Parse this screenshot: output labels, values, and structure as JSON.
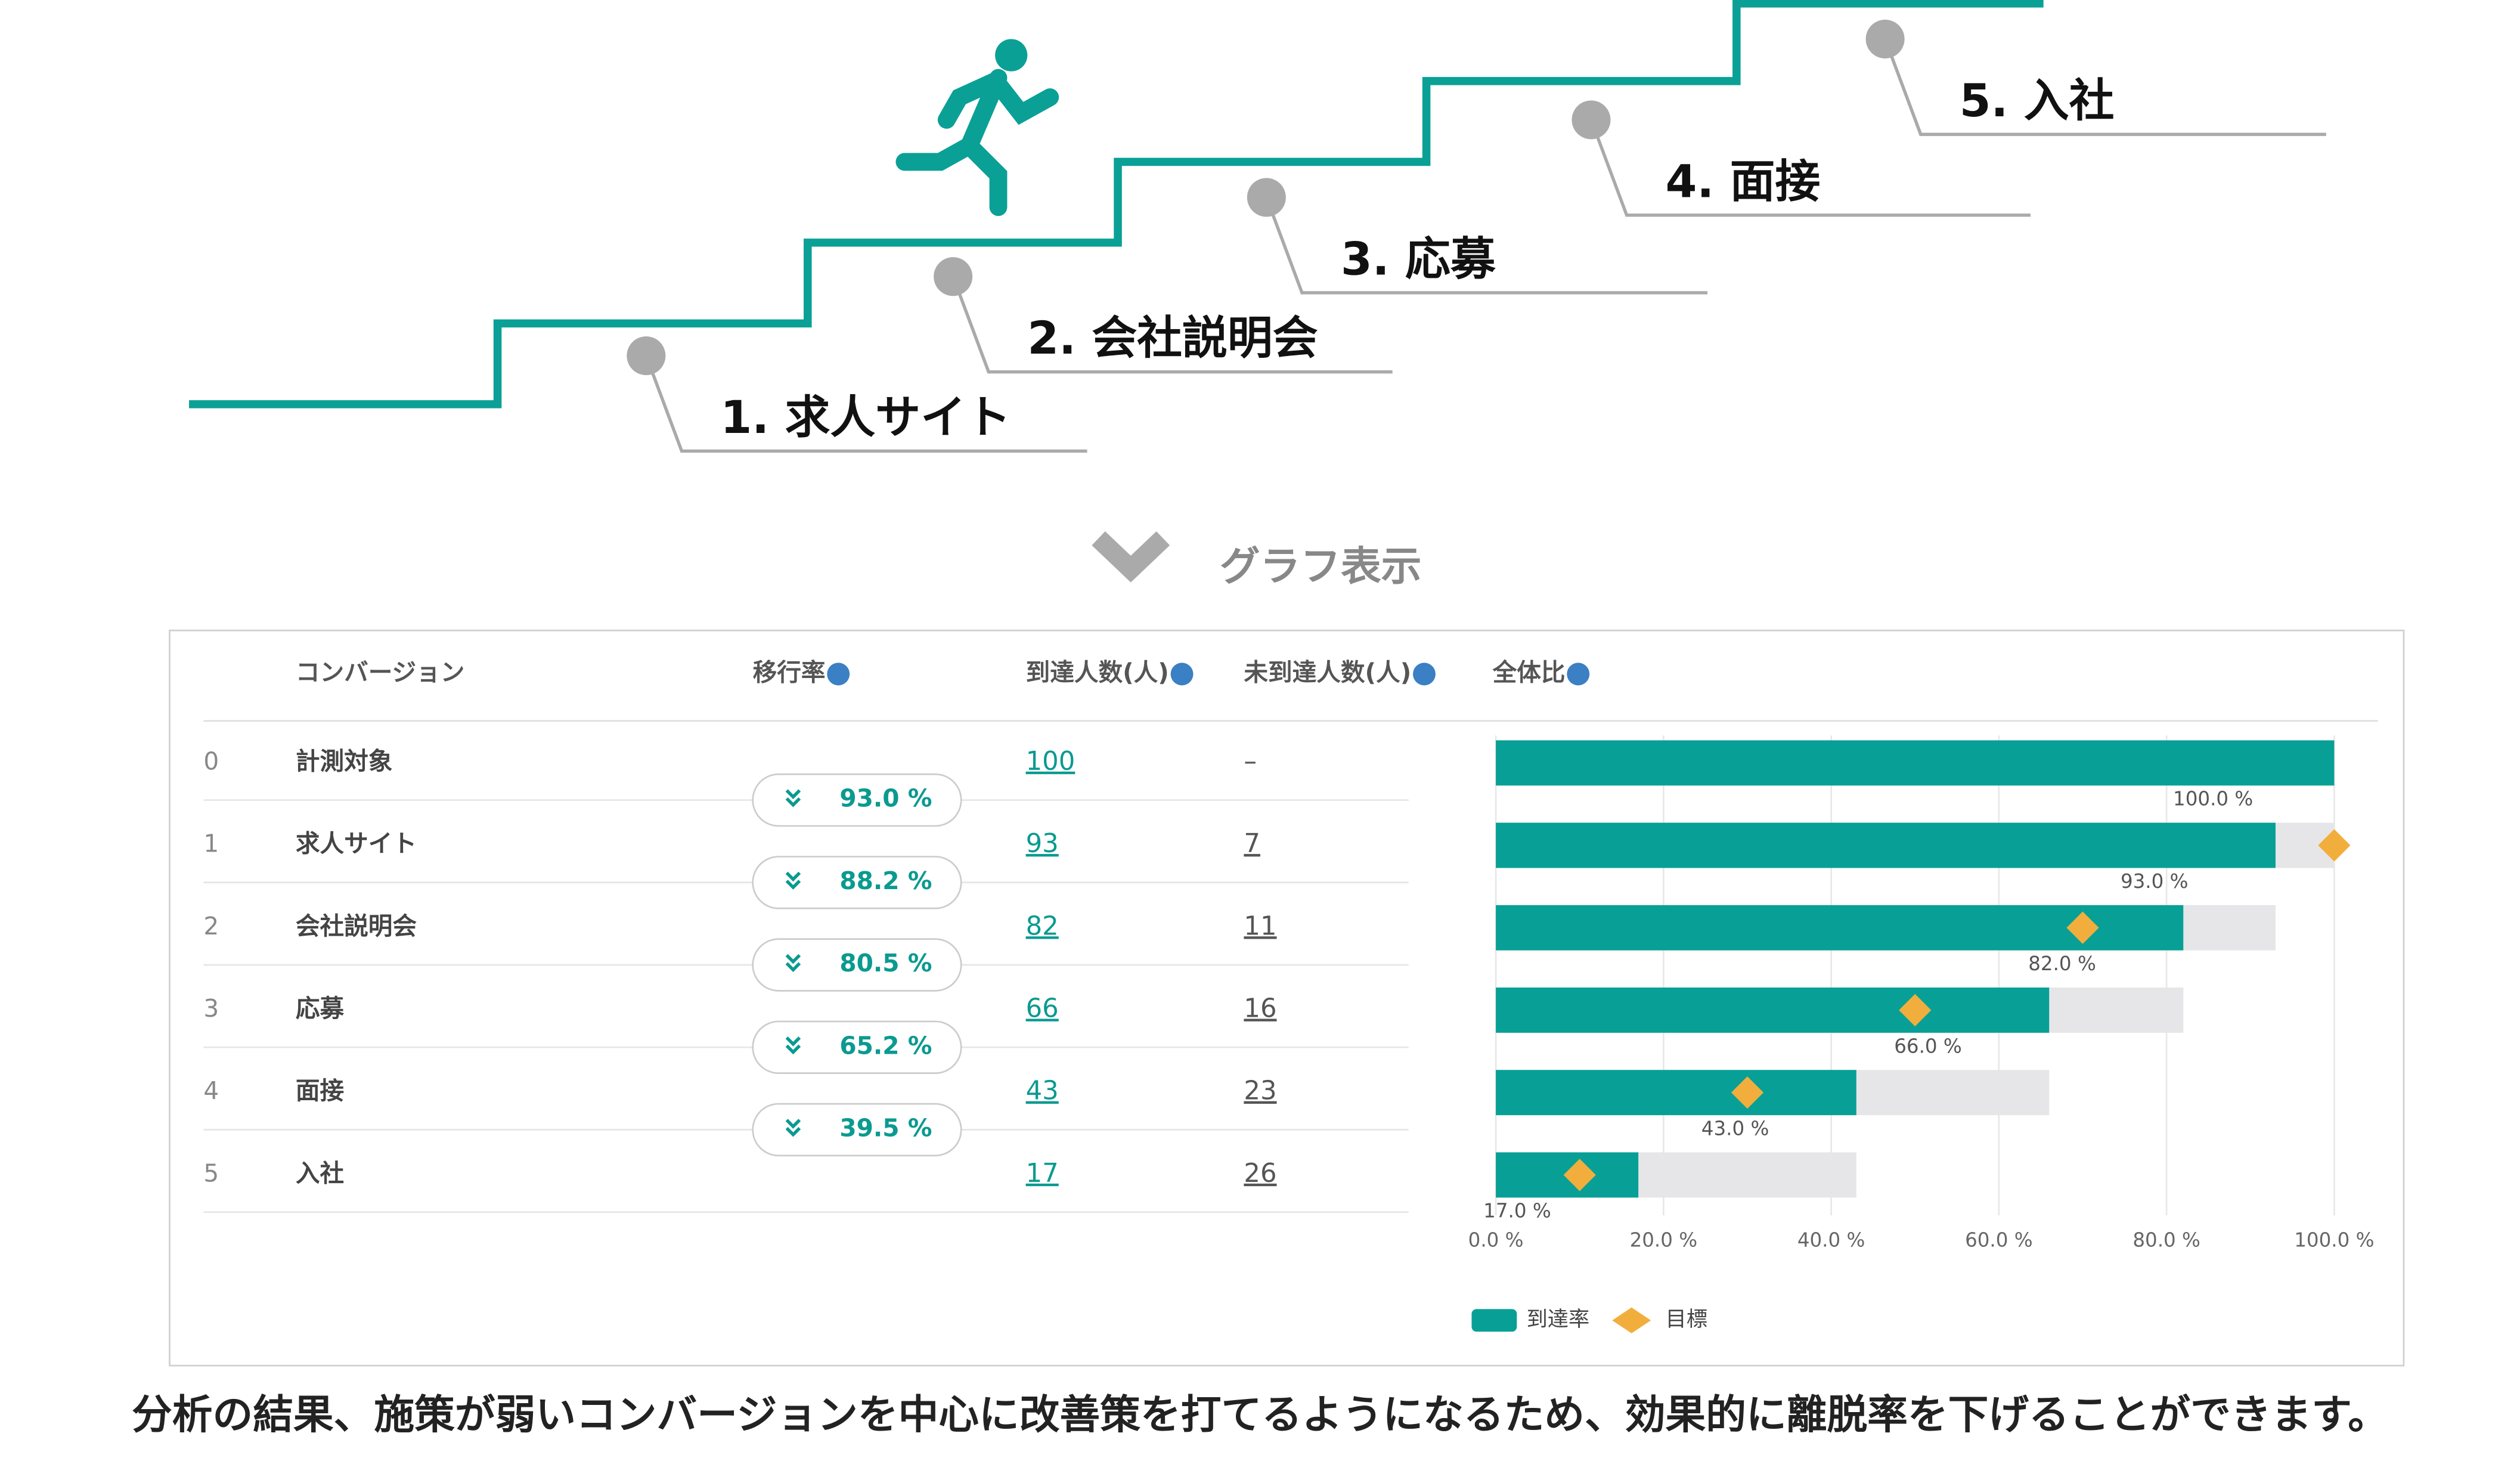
{
  "steps": [
    "1. 求人サイト",
    "2. 会社説明会",
    "3. 応募",
    "4. 面接",
    "5. 入社"
  ],
  "toggle_label": "グラフ表示",
  "table": {
    "headers": [
      "コンバージョン",
      "移行率",
      "到達人数(人)",
      "未到達人数(人)",
      "全体比"
    ],
    "rows": [
      [
        "0",
        "計測対象",
        "100",
        "–"
      ],
      [
        "1",
        "求人サイト",
        "93",
        "7"
      ],
      [
        "2",
        "会社説明会",
        "82",
        "11"
      ],
      [
        "3",
        "応募",
        "66",
        "16"
      ],
      [
        "4",
        "面接",
        "43",
        "23"
      ],
      [
        "5",
        "入社",
        "17",
        "26"
      ]
    ],
    "transitions": [
      "93.0 %",
      "88.2 %",
      "80.5 %",
      "65.2 %",
      "39.5 %"
    ]
  },
  "chart_data": {
    "type": "bar",
    "orientation": "horizontal",
    "series": [
      {
        "name": "到達率",
        "color": "#08a096",
        "values": [
          100,
          93,
          82,
          66,
          43,
          17
        ],
        "value_labels": [
          "100.0 %",
          "93.0 %",
          "82.0 %",
          "66.0 %",
          "43.0 %",
          "17.0 %"
        ]
      },
      {
        "name": "目標",
        "color": "#f2ae3d",
        "values": [
          null,
          100,
          70,
          50,
          30,
          10
        ]
      }
    ],
    "previous_color": "#e6e6e8",
    "xlim": [
      0,
      100
    ],
    "xticks": [
      {
        "value": 0,
        "label": "0.0 %"
      },
      {
        "value": 20,
        "label": "20.0 %"
      },
      {
        "value": 40,
        "label": "40.0 %"
      },
      {
        "value": 60,
        "label": "60.0 %"
      },
      {
        "value": 80,
        "label": "80.0 %"
      },
      {
        "value": 100,
        "label": "100.0 %"
      }
    ],
    "grid": true
  },
  "caption": "分析の結果、施策が弱いコンバージョンを中心に改善策を打てるようになるため、効果的に離脱率を下げることができます。"
}
